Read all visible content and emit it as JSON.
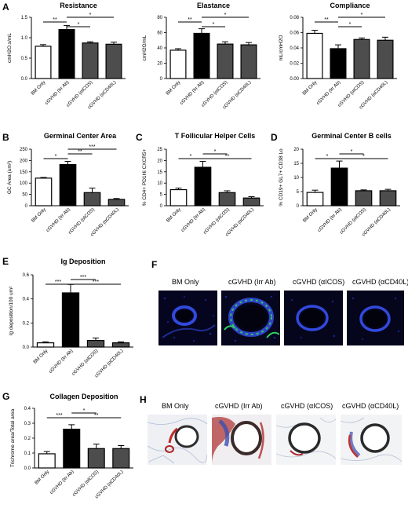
{
  "panels": {
    "A": "A",
    "B": "B",
    "C": "C",
    "D": "D",
    "E": "E",
    "F": "F",
    "G": "G",
    "H": "H"
  },
  "categories": [
    "BM Only",
    "cGVHD (Irr Ab)",
    "cGVHD (αICOS)",
    "cGVHD (αCD40L)"
  ],
  "bar_colors": [
    "#ffffff",
    "#000000",
    "#4d4d4d",
    "#4d4d4d"
  ],
  "chart_data": [
    {
      "id": "resistance",
      "type": "bar",
      "title": "Resistance",
      "ylabel": "cmH2O.s/mL",
      "ylim": [
        0,
        1.5
      ],
      "yticks": [
        "0.0",
        "0.5",
        "1.0",
        "1.5"
      ],
      "ytick_values": [
        0,
        0.5,
        1.0,
        1.5
      ],
      "categories": [
        "BM Only",
        "cGVHD (Irr Ab)",
        "cGVHD (αICOS)",
        "cGVHD (αCD40L)"
      ],
      "values": [
        0.79,
        1.2,
        0.87,
        0.84
      ],
      "errors": [
        0.04,
        0.1,
        0.03,
        0.05
      ],
      "significance": [
        {
          "from": 0,
          "to": 1,
          "label": "**",
          "level": 1
        },
        {
          "from": 1,
          "to": 2,
          "label": "*",
          "level": 0
        },
        {
          "from": 1,
          "to": 3,
          "label": "*",
          "level": 2
        }
      ]
    },
    {
      "id": "elastance",
      "type": "bar",
      "title": "Elastance",
      "ylabel": "cmH2O/mL",
      "ylim": [
        0,
        80
      ],
      "yticks": [
        "0",
        "20",
        "40",
        "60",
        "80"
      ],
      "ytick_values": [
        0,
        20,
        40,
        60,
        80
      ],
      "categories": [
        "BM Only",
        "cGVHD (Irr Ab)",
        "cGVHD (αICOS)",
        "cGVHD (αCD40L)"
      ],
      "values": [
        37,
        59,
        45,
        44
      ],
      "errors": [
        2,
        6,
        3,
        3
      ],
      "significance": [
        {
          "from": 0,
          "to": 1,
          "label": "**",
          "level": 1
        },
        {
          "from": 1,
          "to": 2,
          "label": "*",
          "level": 0
        },
        {
          "from": 1,
          "to": 3,
          "label": "*",
          "level": 2
        }
      ]
    },
    {
      "id": "compliance",
      "type": "bar",
      "title": "Compliance",
      "ylabel": "mL/cmH2O",
      "ylim": [
        0,
        0.08
      ],
      "yticks": [
        "0.00",
        "0.02",
        "0.04",
        "0.06",
        "0.08"
      ],
      "ytick_values": [
        0,
        0.02,
        0.04,
        0.06,
        0.08
      ],
      "categories": [
        "BM Only",
        "cGVHD (Irr Ab)",
        "cGVHD (αICOS)",
        "cGVHD (αCD40L)"
      ],
      "values": [
        0.059,
        0.039,
        0.051,
        0.05
      ],
      "errors": [
        0.004,
        0.005,
        0.002,
        0.004
      ],
      "significance": [
        {
          "from": 0,
          "to": 1,
          "label": "**",
          "level": 1
        },
        {
          "from": 1,
          "to": 2,
          "label": "*",
          "level": 0
        },
        {
          "from": 1,
          "to": 3,
          "label": "*",
          "level": 2
        }
      ]
    },
    {
      "id": "gc-area",
      "type": "bar",
      "title": "Germinal Center Area",
      "ylabel": "GC Area (um²)",
      "ylim": [
        0,
        250
      ],
      "yticks": [
        "0",
        "50",
        "100",
        "150",
        "200",
        "250"
      ],
      "ytick_values": [
        0,
        50,
        100,
        150,
        200,
        250
      ],
      "categories": [
        "BM Only",
        "cGVHD (Irr Ab)",
        "cGVHD (αICOS)",
        "cGVHD (αCD40L)"
      ],
      "values": [
        122,
        182,
        58,
        28
      ],
      "errors": [
        3,
        14,
        20,
        4
      ],
      "significance": [
        {
          "from": 0,
          "to": 1,
          "label": "*",
          "level": 0
        },
        {
          "from": 1,
          "to": 2,
          "label": "**",
          "level": 1
        },
        {
          "from": 1,
          "to": 3,
          "label": "***",
          "level": 2
        }
      ]
    },
    {
      "id": "tfh",
      "type": "bar",
      "title": "T Follicular Helper Cells",
      "ylabel": "% CD4+ PD1Hi CXCR5+",
      "ylim": [
        0,
        25
      ],
      "yticks": [
        "0",
        "5",
        "10",
        "15",
        "20",
        "25"
      ],
      "ytick_values": [
        0,
        5,
        10,
        15,
        20,
        25
      ],
      "categories": [
        "BM Only",
        "cGVHD (Irr Ab)",
        "cGVHD (αICOS)",
        "cGVHD (αCD40L)"
      ],
      "values": [
        7.1,
        17,
        5.8,
        3.4
      ],
      "errors": [
        0.7,
        2.6,
        0.8,
        0.6
      ],
      "significance": [
        {
          "from": 0,
          "to": 1,
          "label": "*",
          "level": 0
        },
        {
          "from": 1,
          "to": 2,
          "label": "*",
          "level": 1
        },
        {
          "from": 1,
          "to": 3,
          "label": "**",
          "level": 0
        }
      ]
    },
    {
      "id": "gc-b",
      "type": "bar",
      "title": "Germinal Center B cells",
      "ylabel": "% CD19+ GL7+ CD38 Lo",
      "ylim": [
        0,
        20
      ],
      "yticks": [
        "0",
        "5",
        "10",
        "15",
        "20"
      ],
      "ytick_values": [
        0,
        5,
        10,
        15,
        20
      ],
      "categories": [
        "BM Only",
        "cGVHD (Irr Ab)",
        "cGVHD (αICOS)",
        "cGVHD (αCD40L)"
      ],
      "values": [
        4.7,
        13.3,
        5.3,
        5.3
      ],
      "errors": [
        0.8,
        2.5,
        0.3,
        0.5
      ],
      "significance": [
        {
          "from": 0,
          "to": 1,
          "label": "*",
          "level": 0
        },
        {
          "from": 1,
          "to": 2,
          "label": "*",
          "level": 1
        },
        {
          "from": 1,
          "to": 3,
          "label": "*",
          "level": 0
        }
      ]
    },
    {
      "id": "ig",
      "type": "bar",
      "title": "Ig Deposition",
      "ylabel": "Ig deposition/100 um²",
      "ylim": [
        0,
        0.6
      ],
      "yticks": [
        "0.0",
        "0.2",
        "0.4",
        "0.6"
      ],
      "ytick_values": [
        0,
        0.2,
        0.4,
        0.6
      ],
      "categories": [
        "BM Only",
        "cGVHD (Irr Ab)",
        "cGVHD (αICOS)",
        "cGVHD (αCD40L)"
      ],
      "values": [
        0.035,
        0.45,
        0.055,
        0.035
      ],
      "errors": [
        0.008,
        0.07,
        0.02,
        0.008
      ],
      "significance": [
        {
          "from": 0,
          "to": 1,
          "label": "***",
          "level": 0
        },
        {
          "from": 1,
          "to": 2,
          "label": "***",
          "level": 1
        },
        {
          "from": 1,
          "to": 3,
          "label": "***",
          "level": 0
        }
      ]
    },
    {
      "id": "collagen",
      "type": "bar",
      "title": "Collagen Deposition",
      "ylabel": "Trichrome area/Total area",
      "ylim": [
        0,
        0.4
      ],
      "yticks": [
        "0.0",
        "0.1",
        "0.2",
        "0.3",
        "0.4"
      ],
      "ytick_values": [
        0,
        0.1,
        0.2,
        0.3,
        0.4
      ],
      "categories": [
        "BM Only",
        "cGVHD (Irr Ab)",
        "cGVHD (αICOS)",
        "cGVHD (αCD40L)"
      ],
      "values": [
        0.095,
        0.26,
        0.13,
        0.13
      ],
      "errors": [
        0.015,
        0.03,
        0.03,
        0.02
      ],
      "significance": [
        {
          "from": 0,
          "to": 1,
          "label": "***",
          "level": 0
        },
        {
          "from": 1,
          "to": 2,
          "label": "*",
          "level": 1
        },
        {
          "from": 1,
          "to": 3,
          "label": "**",
          "level": 0
        }
      ]
    }
  ],
  "panelF": {
    "labels": [
      "BM Only",
      "cGVHD (Irr Ab)",
      "cGVHD (αICOS)",
      "cGVHD (αCD40L)"
    ]
  },
  "panelH": {
    "labels": [
      "BM Only",
      "cGVHD (Irr Ab)",
      "cGVHD (αICOS)",
      "cGVHD (αCD40L)"
    ]
  }
}
